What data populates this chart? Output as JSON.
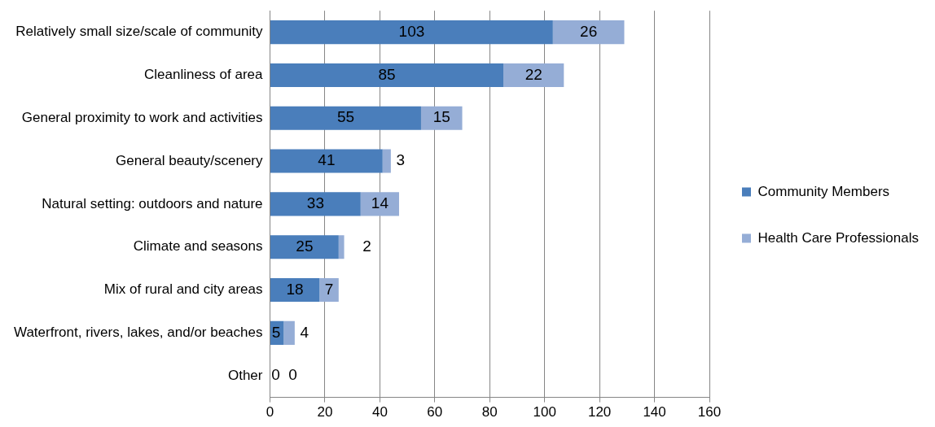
{
  "chart_data": {
    "type": "bar",
    "orientation": "horizontal",
    "stacked": true,
    "categories": [
      "Relatively small size/scale of community",
      "Cleanliness of area",
      "General proximity to work and activities",
      "General beauty/scenery",
      "Natural setting: outdoors and nature",
      "Climate and seasons",
      "Mix of rural and city areas",
      "Waterfront, rivers, lakes, and/or beaches",
      "Other"
    ],
    "series": [
      {
        "name": "Community Members",
        "color": "#4a7ebb",
        "values": [
          103,
          85,
          55,
          41,
          33,
          25,
          18,
          5,
          0
        ]
      },
      {
        "name": "Health Care Professionals",
        "color": "#95add6",
        "values": [
          26,
          22,
          15,
          3,
          14,
          2,
          7,
          4,
          0
        ]
      }
    ],
    "xlim": [
      0,
      160
    ],
    "xticks": [
      0,
      20,
      40,
      60,
      80,
      100,
      120,
      140,
      160
    ],
    "grid": "x",
    "legend": "right",
    "data_labels": true
  }
}
